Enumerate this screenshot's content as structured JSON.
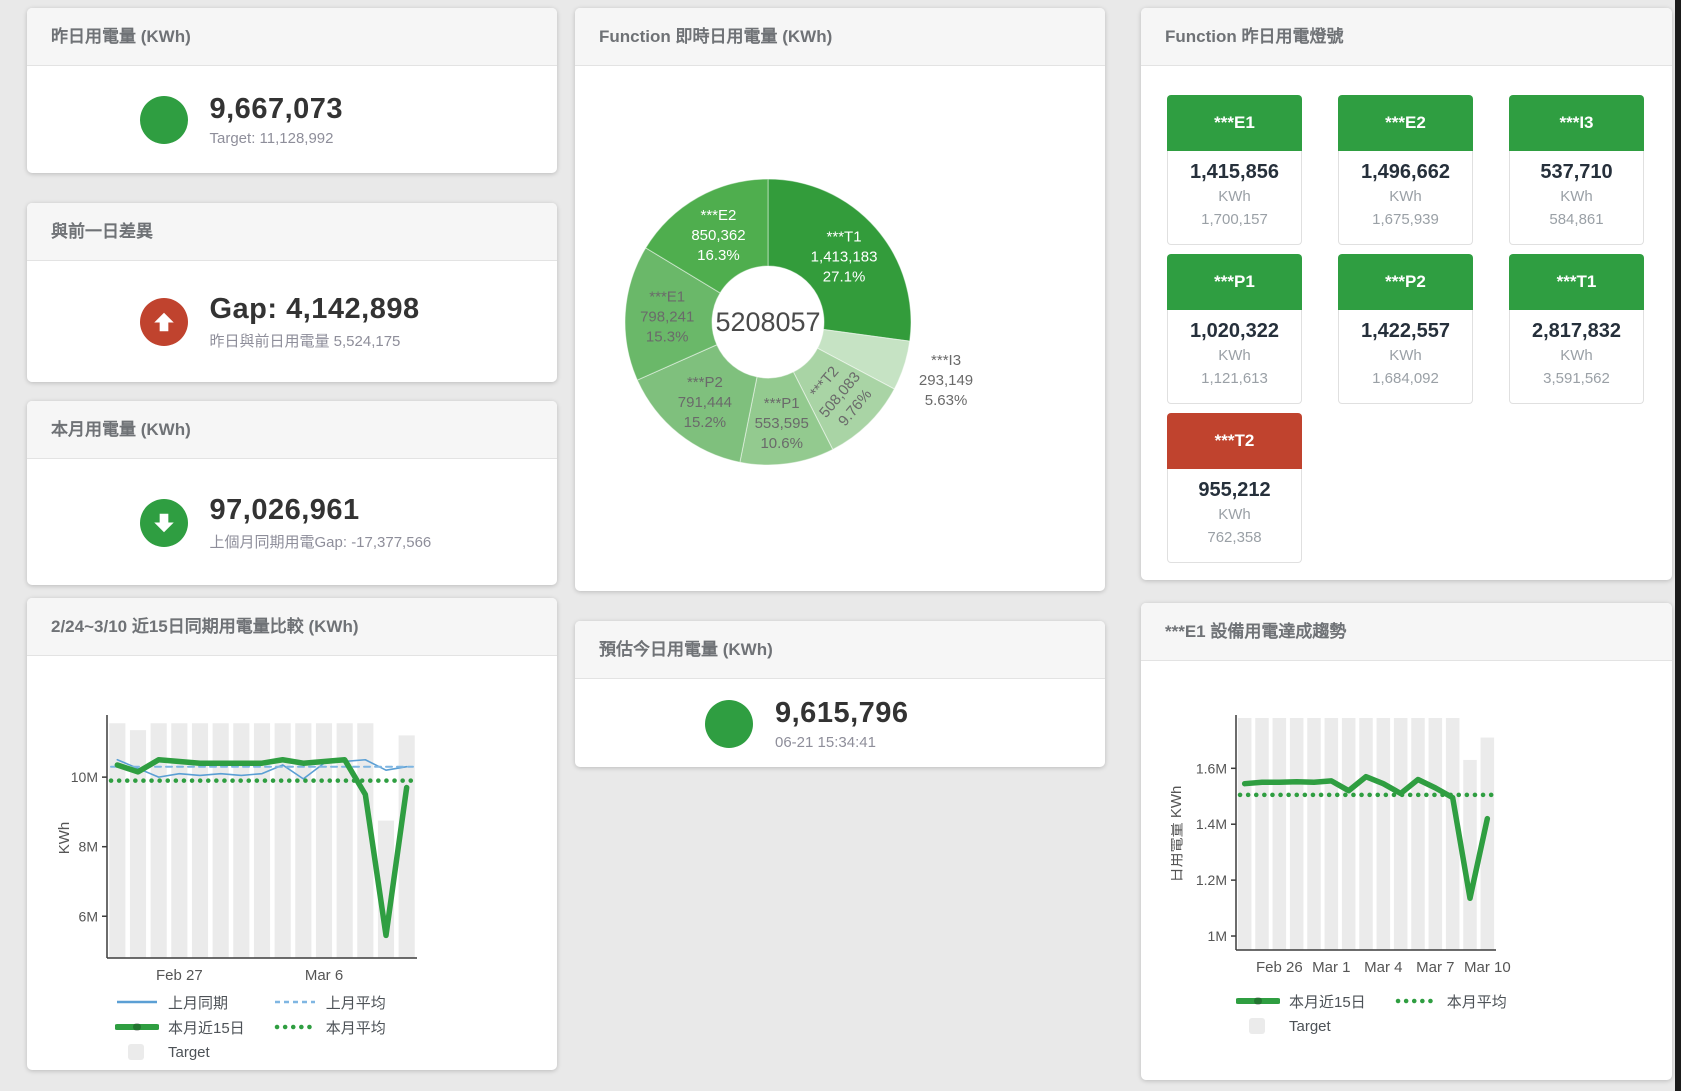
{
  "theme": {
    "green": "#2f9e41",
    "red": "#c0432e",
    "bar_gray": "#ebebeb",
    "blue": "#5b9fd4",
    "light_blue": "#7fb6e2"
  },
  "icons": {
    "up": "arrow-up-icon",
    "down": "arrow-down-icon",
    "dot": "status-circle-icon"
  },
  "cards": {
    "yesterday": {
      "title": "昨日用電量 (KWh)",
      "value": "9,667,073",
      "subtitle": "Target: 11,128,992"
    },
    "day_gap": {
      "title": "與前一日差異",
      "value": "Gap: 4,142,898",
      "subtitle": "昨日與前日用電量 5,524,175"
    },
    "month": {
      "title": "本月用電量 (KWh)",
      "value": "97,026,961",
      "subtitle": "上個月同期用電Gap: -17,377,566"
    },
    "compare15": {
      "title": "2/24~3/10 近15日同期用電量比較 (KWh)"
    },
    "realtime": {
      "title": "Function 即時日用電量 (KWh)"
    },
    "estimate": {
      "title": "預估今日用電量 (KWh)",
      "value": "9,615,796",
      "subtitle": "06-21 15:34:41"
    },
    "lights": {
      "title": "Function 昨日用電燈號",
      "tiles": [
        {
          "name": "***E1",
          "value": "1,415,856",
          "unit": "KWh",
          "target": "1,700,157",
          "status": "ok"
        },
        {
          "name": "***E2",
          "value": "1,496,662",
          "unit": "KWh",
          "target": "1,675,939",
          "status": "ok"
        },
        {
          "name": "***I3",
          "value": "537,710",
          "unit": "KWh",
          "target": "584,861",
          "status": "ok"
        },
        {
          "name": "***P1",
          "value": "1,020,322",
          "unit": "KWh",
          "target": "1,121,613",
          "status": "ok"
        },
        {
          "name": "***P2",
          "value": "1,422,557",
          "unit": "KWh",
          "target": "1,684,092",
          "status": "ok"
        },
        {
          "name": "***T1",
          "value": "2,817,832",
          "unit": "KWh",
          "target": "3,591,562",
          "status": "ok"
        },
        {
          "name": "***T2",
          "value": "955,212",
          "unit": "KWh",
          "target": "762,358",
          "status": "alert"
        }
      ]
    },
    "e1_trend": {
      "title": "***E1 設備用電達成趨勢"
    }
  },
  "chart_data": [
    {
      "id": "realtime_donut",
      "type": "pie",
      "title": "Function 即時日用電量 (KWh)",
      "center_label": "5208057",
      "slices": [
        {
          "name": "***T1",
          "value": 1413183,
          "display": "1,413,183",
          "pct": "27.1%",
          "color": "#339c3b",
          "text": "#ffffff"
        },
        {
          "name": "***I3",
          "value": 293149,
          "display": "293,149",
          "pct": "5.63%",
          "color": "#c6e3c4",
          "text": "#6a6a6a",
          "outside": true
        },
        {
          "name": "***T2",
          "value": 508083,
          "display": "508,083",
          "pct": "9.76%",
          "color": "#a9d4a5",
          "text": "#6a6a6a",
          "rotate": -50
        },
        {
          "name": "***P1",
          "value": 553595,
          "display": "553,595",
          "pct": "10.6%",
          "color": "#93ca8f",
          "text": "#6a6a6a"
        },
        {
          "name": "***P2",
          "value": 791444,
          "display": "791,444",
          "pct": "15.2%",
          "color": "#7fc07d",
          "text": "#6a6a6a"
        },
        {
          "name": "***E1",
          "value": 798241,
          "display": "798,241",
          "pct": "15.3%",
          "color": "#6ab869",
          "text": "#6a6a6a"
        },
        {
          "name": "***E2",
          "value": 850362,
          "display": "850,362",
          "pct": "16.3%",
          "color": "#4fae4e",
          "text": "#ffffff"
        }
      ]
    },
    {
      "id": "compare15",
      "type": "line",
      "title": "2/24~3/10 近15日同期用電量比較 (KWh)",
      "categories": [
        "2/24",
        "2/25",
        "2/26",
        "2/27",
        "2/28",
        "3/1",
        "3/2",
        "3/3",
        "3/4",
        "3/5",
        "3/6",
        "3/7",
        "3/8",
        "3/9",
        "3/10"
      ],
      "ylabel": "KWh",
      "ylim": [
        4.8,
        11.7
      ],
      "yticks": [
        {
          "v": 6,
          "label": "6M"
        },
        {
          "v": 8,
          "label": "8M"
        },
        {
          "v": 10,
          "label": "10M"
        }
      ],
      "xticks": [
        {
          "i": 3,
          "label": "Feb 27"
        },
        {
          "i": 10,
          "label": "Mar 6"
        }
      ],
      "target_bars": {
        "name": "Target",
        "color": "#ebebeb",
        "values": [
          11.55,
          11.35,
          11.55,
          11.55,
          11.55,
          11.55,
          11.55,
          11.55,
          11.55,
          11.55,
          11.55,
          11.55,
          11.55,
          8.75,
          11.2
        ]
      },
      "series": [
        {
          "name": "上月同期",
          "style": "solid",
          "color": "#5b9fd4",
          "width": 1.6,
          "values": [
            10.5,
            10.25,
            10.0,
            10.1,
            10.05,
            10.1,
            10.05,
            10.1,
            10.35,
            9.95,
            10.4,
            10.45,
            10.5,
            10.2,
            10.3
          ]
        },
        {
          "name": "上月平均",
          "style": "dashed",
          "color": "#7fb6e2",
          "width": 2,
          "values": 10.3
        },
        {
          "name": "本月近15日",
          "style": "solid",
          "color": "#2f9e41",
          "width": 5.5,
          "values": [
            10.35,
            10.15,
            10.5,
            10.45,
            10.4,
            10.4,
            10.4,
            10.4,
            10.5,
            10.4,
            10.45,
            10.5,
            9.5,
            5.45,
            9.7
          ]
        },
        {
          "name": "本月平均",
          "style": "dotted",
          "color": "#2f9e41",
          "width": 4.5,
          "values": 9.9
        }
      ]
    },
    {
      "id": "e1_trend",
      "type": "line",
      "title": "***E1 設備用電達成趨勢",
      "categories": [
        "2/24",
        "2/25",
        "2/26",
        "2/27",
        "2/28",
        "3/1",
        "3/2",
        "3/3",
        "3/4",
        "3/5",
        "3/6",
        "3/7",
        "3/8",
        "3/9",
        "3/10"
      ],
      "ylabel": "日用電量 KWh",
      "ylim": [
        0.95,
        1.78
      ],
      "yticks": [
        {
          "v": 1,
          "label": "1M"
        },
        {
          "v": 1.2,
          "label": "1.2M"
        },
        {
          "v": 1.4,
          "label": "1.4M"
        },
        {
          "v": 1.6,
          "label": "1.6M"
        }
      ],
      "xticks": [
        {
          "i": 2,
          "label": "Feb 26"
        },
        {
          "i": 5,
          "label": "Mar 1"
        },
        {
          "i": 8,
          "label": "Mar 4"
        },
        {
          "i": 11,
          "label": "Mar 7"
        },
        {
          "i": 14,
          "label": "Mar 10"
        }
      ],
      "target_bars": {
        "name": "Target",
        "color": "#ebebeb",
        "values": [
          1.78,
          1.78,
          1.78,
          1.78,
          1.78,
          1.78,
          1.78,
          1.78,
          1.78,
          1.78,
          1.78,
          1.78,
          1.78,
          1.63,
          1.71
        ]
      },
      "series": [
        {
          "name": "本月近15日",
          "style": "solid",
          "color": "#2f9e41",
          "width": 5.5,
          "values": [
            1.545,
            1.55,
            1.55,
            1.552,
            1.55,
            1.555,
            1.52,
            1.57,
            1.545,
            1.51,
            1.56,
            1.53,
            1.495,
            1.135,
            1.42
          ]
        },
        {
          "name": "本月平均",
          "style": "dotted",
          "color": "#2f9e41",
          "width": 4.5,
          "values": 1.505
        }
      ]
    }
  ]
}
